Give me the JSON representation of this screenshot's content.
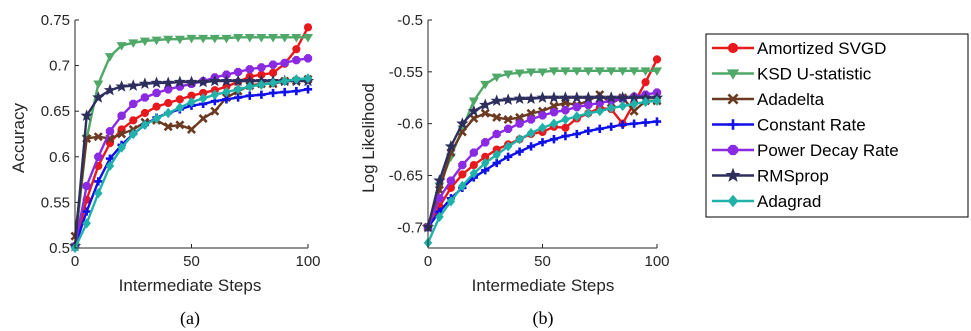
{
  "chart_data": [
    {
      "type": "line",
      "caption": "(a)",
      "xlabel": "Intermediate Steps",
      "ylabel": "Accuracy",
      "xlim": [
        0,
        100
      ],
      "ylim": [
        0.5,
        0.75
      ],
      "xticks": [
        0,
        50,
        100
      ],
      "yticks": [
        0.5,
        0.55,
        0.6,
        0.65,
        0.7,
        0.75
      ],
      "ytick_labels": [
        "0.5",
        "0.55",
        "0.6",
        "0.65",
        "0.7",
        "0.75"
      ],
      "x": [
        0,
        5,
        10,
        15,
        20,
        25,
        30,
        35,
        40,
        45,
        50,
        55,
        60,
        65,
        70,
        75,
        80,
        85,
        90,
        95,
        100
      ],
      "series": [
        {
          "name": "Amortized SVGD",
          "values": [
            0.502,
            0.553,
            0.59,
            0.615,
            0.63,
            0.64,
            0.648,
            0.655,
            0.659,
            0.663,
            0.667,
            0.67,
            0.673,
            0.677,
            0.682,
            0.688,
            0.69,
            0.692,
            0.702,
            0.718,
            0.742
          ]
        },
        {
          "name": "KSD U-statistic",
          "values": [
            0.502,
            0.62,
            0.68,
            0.71,
            0.722,
            0.725,
            0.727,
            0.728,
            0.729,
            0.729,
            0.73,
            0.73,
            0.73,
            0.73,
            0.731,
            0.731,
            0.731,
            0.731,
            0.731,
            0.731,
            0.731
          ]
        },
        {
          "name": "Adadelta",
          "values": [
            0.513,
            0.62,
            0.622,
            0.62,
            0.625,
            0.63,
            0.638,
            0.64,
            0.633,
            0.635,
            0.63,
            0.642,
            0.65,
            0.665,
            0.672,
            0.678,
            0.68,
            0.68,
            0.683,
            0.683,
            0.685
          ]
        },
        {
          "name": "Constant Rate",
          "values": [
            0.502,
            0.54,
            0.573,
            0.598,
            0.613,
            0.625,
            0.635,
            0.643,
            0.648,
            0.652,
            0.656,
            0.658,
            0.661,
            0.663,
            0.665,
            0.667,
            0.668,
            0.67,
            0.671,
            0.672,
            0.674
          ]
        },
        {
          "name": "Power Decay Rate",
          "values": [
            0.502,
            0.568,
            0.6,
            0.628,
            0.645,
            0.658,
            0.665,
            0.67,
            0.674,
            0.677,
            0.68,
            0.683,
            0.687,
            0.69,
            0.693,
            0.696,
            0.698,
            0.701,
            0.703,
            0.706,
            0.708
          ]
        },
        {
          "name": "RMSprop",
          "values": [
            0.502,
            0.645,
            0.665,
            0.673,
            0.677,
            0.678,
            0.68,
            0.681,
            0.681,
            0.682,
            0.682,
            0.682,
            0.683,
            0.683,
            0.683,
            0.683,
            0.683,
            0.683,
            0.683,
            0.683,
            0.683
          ]
        },
        {
          "name": "Adagrad",
          "values": [
            0.5,
            0.527,
            0.56,
            0.59,
            0.61,
            0.625,
            0.635,
            0.642,
            0.648,
            0.654,
            0.66,
            0.664,
            0.668,
            0.671,
            0.674,
            0.677,
            0.679,
            0.681,
            0.683,
            0.685,
            0.686
          ]
        }
      ]
    },
    {
      "type": "line",
      "caption": "(b)",
      "xlabel": "Intermediate Steps",
      "ylabel": "Log Likelihood",
      "xlim": [
        0,
        100
      ],
      "ylim": [
        -0.72,
        -0.5
      ],
      "xticks": [
        0,
        50,
        100
      ],
      "yticks": [
        -0.7,
        -0.65,
        -0.6,
        -0.55,
        -0.5
      ],
      "ytick_labels": [
        "-0.7",
        "-0.65",
        "-0.6",
        "-0.55",
        "-0.5"
      ],
      "x": [
        0,
        5,
        10,
        15,
        20,
        25,
        30,
        35,
        40,
        45,
        50,
        55,
        60,
        65,
        70,
        75,
        80,
        85,
        90,
        95,
        100
      ],
      "series": [
        {
          "name": "Amortized SVGD",
          "values": [
            -0.7,
            -0.68,
            -0.662,
            -0.649,
            -0.64,
            -0.632,
            -0.625,
            -0.62,
            -0.615,
            -0.61,
            -0.608,
            -0.603,
            -0.604,
            -0.595,
            -0.59,
            -0.585,
            -0.586,
            -0.6,
            -0.58,
            -0.56,
            -0.538
          ]
        },
        {
          "name": "KSD U-statistic",
          "values": [
            -0.7,
            -0.66,
            -0.632,
            -0.605,
            -0.578,
            -0.562,
            -0.555,
            -0.552,
            -0.551,
            -0.55,
            -0.55,
            -0.549,
            -0.549,
            -0.549,
            -0.549,
            -0.549,
            -0.549,
            -0.549,
            -0.549,
            -0.549,
            -0.549
          ]
        },
        {
          "name": "Adadelta",
          "values": [
            -0.7,
            -0.664,
            -0.628,
            -0.608,
            -0.595,
            -0.59,
            -0.594,
            -0.596,
            -0.594,
            -0.59,
            -0.588,
            -0.583,
            -0.58,
            -0.582,
            -0.578,
            -0.572,
            -0.58,
            -0.575,
            -0.588,
            -0.578,
            -0.578
          ]
        },
        {
          "name": "Constant Rate",
          "values": [
            -0.7,
            -0.685,
            -0.672,
            -0.662,
            -0.652,
            -0.645,
            -0.638,
            -0.632,
            -0.627,
            -0.622,
            -0.618,
            -0.615,
            -0.612,
            -0.61,
            -0.607,
            -0.605,
            -0.603,
            -0.601,
            -0.6,
            -0.599,
            -0.598
          ]
        },
        {
          "name": "Power Decay Rate",
          "values": [
            -0.7,
            -0.672,
            -0.655,
            -0.64,
            -0.628,
            -0.618,
            -0.61,
            -0.605,
            -0.6,
            -0.596,
            -0.592,
            -0.589,
            -0.587,
            -0.584,
            -0.582,
            -0.58,
            -0.578,
            -0.576,
            -0.574,
            -0.572,
            -0.57
          ]
        },
        {
          "name": "RMSprop",
          "values": [
            -0.7,
            -0.655,
            -0.622,
            -0.6,
            -0.588,
            -0.582,
            -0.578,
            -0.577,
            -0.576,
            -0.576,
            -0.575,
            -0.575,
            -0.575,
            -0.575,
            -0.575,
            -0.575,
            -0.575,
            -0.575,
            -0.575,
            -0.575,
            -0.575
          ]
        },
        {
          "name": "Adagrad",
          "values": [
            -0.715,
            -0.69,
            -0.675,
            -0.66,
            -0.648,
            -0.638,
            -0.63,
            -0.622,
            -0.615,
            -0.609,
            -0.604,
            -0.6,
            -0.596,
            -0.593,
            -0.59,
            -0.588,
            -0.585,
            -0.583,
            -0.581,
            -0.579,
            -0.578
          ]
        }
      ]
    }
  ],
  "legend": {
    "placement": "right",
    "entries": [
      {
        "label": "Amortized SVGD",
        "color": "#e8191c",
        "marker": "circle"
      },
      {
        "label": "KSD U-statistic",
        "color": "#4fa868",
        "marker": "triangle-down"
      },
      {
        "label": "Adadelta",
        "color": "#6b3a22",
        "marker": "x"
      },
      {
        "label": "Constant Rate",
        "color": "#1010e8",
        "marker": "plus"
      },
      {
        "label": "Power Decay Rate",
        "color": "#8a2be2",
        "marker": "octagon"
      },
      {
        "label": "RMSprop",
        "color": "#2e2e5e",
        "marker": "star"
      },
      {
        "label": "Adagrad",
        "color": "#20b2aa",
        "marker": "diamond"
      }
    ]
  }
}
